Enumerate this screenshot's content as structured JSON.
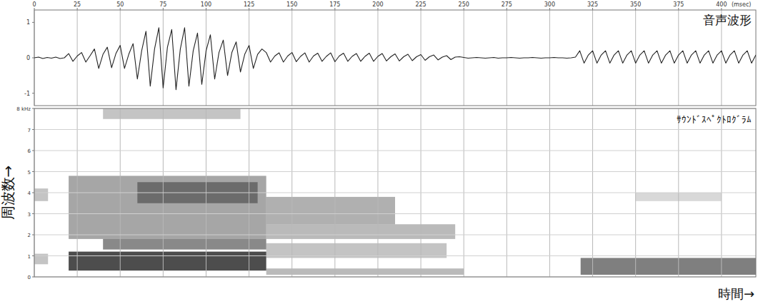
{
  "chart_data": [
    {
      "type": "line",
      "title": "音声波形",
      "xlabel": "(msec)",
      "color": "#222222",
      "grid": true,
      "xlim": [
        0,
        420
      ],
      "xticks": [
        0,
        25,
        50,
        75,
        100,
        125,
        150,
        175,
        200,
        225,
        250,
        275,
        300,
        325,
        350,
        375,
        400
      ],
      "ylim": [
        -1.35,
        1.35
      ],
      "yticks": [
        -1,
        0,
        1
      ],
      "x": [
        0,
        2.5,
        5,
        7.5,
        10,
        12.5,
        15,
        17.5,
        20,
        22.5,
        25,
        27.5,
        30,
        32.5,
        35,
        37.5,
        40,
        42.5,
        45,
        47.5,
        50,
        52.5,
        55,
        57.5,
        60,
        62.5,
        65,
        67.5,
        70,
        72.5,
        75,
        77.5,
        80,
        82.5,
        85,
        87.5,
        90,
        92.5,
        95,
        97.5,
        100,
        102.5,
        105,
        107.5,
        110,
        112.5,
        115,
        117.5,
        120,
        122.5,
        125,
        127.5,
        130,
        132.5,
        135,
        137.5,
        140,
        142.5,
        145,
        147.5,
        150,
        152.5,
        155,
        157.5,
        160,
        162.5,
        165,
        167.5,
        170,
        172.5,
        175,
        177.5,
        180,
        182.5,
        185,
        187.5,
        190,
        192.5,
        195,
        197.5,
        200,
        202.5,
        205,
        207.5,
        210,
        212.5,
        215,
        217.5,
        220,
        222.5,
        225,
        227.5,
        230,
        232.5,
        235,
        237.5,
        240,
        242.5,
        245,
        247.5,
        250,
        252.5,
        255,
        257.5,
        260,
        262.5,
        265,
        267.5,
        270,
        272.5,
        275,
        277.5,
        280,
        282.5,
        285,
        287.5,
        290,
        292.5,
        295,
        297.5,
        300,
        302.5,
        305,
        307.5,
        310,
        312.5,
        315,
        317.5,
        320,
        322.5,
        325,
        327.5,
        330,
        332.5,
        335,
        337.5,
        340,
        342.5,
        345,
        347.5,
        350,
        352.5,
        355,
        357.5,
        360,
        362.5,
        365,
        367.5,
        370,
        372.5,
        375,
        377.5,
        380,
        382.5,
        385,
        387.5,
        390,
        392.5,
        395,
        397.5,
        400,
        402.5,
        405,
        407.5,
        410,
        412.5,
        415,
        417.5,
        420
      ],
      "values": [
        0,
        0.02,
        -0.02,
        0.01,
        -0.01,
        0.02,
        -0.02,
        0,
        0.12,
        -0.1,
        0.05,
        0.15,
        -0.12,
        0.06,
        0.25,
        -0.3,
        0.1,
        0.3,
        -0.28,
        0.12,
        0.35,
        -0.3,
        0.1,
        0.4,
        -0.6,
        0.2,
        0.75,
        -0.8,
        0.25,
        0.85,
        -0.85,
        0.3,
        0.8,
        -0.9,
        0.25,
        0.85,
        -0.8,
        0.2,
        0.7,
        -0.75,
        0.2,
        0.65,
        -0.6,
        0.15,
        0.5,
        -0.5,
        0.15,
        0.45,
        -0.4,
        0.1,
        0.35,
        -0.3,
        0.1,
        0.25,
        0.15,
        -0.12,
        0.05,
        0.14,
        -0.12,
        0.05,
        0.15,
        -0.11,
        0.04,
        0.14,
        -0.12,
        0.05,
        0.13,
        -0.1,
        0.04,
        0.14,
        -0.11,
        0.05,
        0.13,
        -0.1,
        0.04,
        0.12,
        -0.1,
        0.04,
        0.13,
        -0.1,
        0.04,
        0.12,
        -0.09,
        0.03,
        0.11,
        -0.09,
        0.03,
        0.1,
        -0.08,
        0.03,
        0.09,
        -0.07,
        0.03,
        0.08,
        -0.06,
        0.02,
        0.06,
        -0.05,
        0.02,
        0.03,
        0.01,
        -0.01,
        0,
        0.01,
        0,
        -0.01,
        0,
        0.01,
        -0.01,
        0,
        0,
        0.01,
        0,
        -0.01,
        0,
        0,
        0.01,
        0,
        -0.01,
        0,
        0,
        0.01,
        0,
        0,
        -0.01,
        0,
        0.02,
        0.2,
        -0.15,
        0.08,
        0.2,
        -0.15,
        0.08,
        0.2,
        -0.15,
        0.08,
        0.2,
        -0.15,
        0.08,
        0.2,
        -0.15,
        0.08,
        0.2,
        -0.15,
        0.08,
        0.2,
        -0.15,
        0.08,
        0.2,
        -0.15,
        0.08,
        0.2,
        -0.15,
        0.08,
        0.2,
        -0.15,
        0.08,
        0.2,
        -0.15,
        0.08,
        0.2,
        -0.15,
        0.08,
        0.2,
        -0.15,
        0.08,
        0.2,
        -0.15,
        0.08
      ]
    },
    {
      "type": "heatmap",
      "title": "ｻｳﾝﾄﾞｽﾍﾟｸﾄﾛｸﾞﾗﾑ",
      "ylabel": "周波数→",
      "xlabel": "時間→",
      "color": "#3a3a3a",
      "grid": true,
      "tick_labels": "y",
      "xlim": [
        0,
        420
      ],
      "xticks": [
        0,
        25,
        50,
        75,
        100,
        125,
        150,
        175,
        200,
        225,
        250,
        275,
        300,
        325,
        350,
        375,
        400
      ],
      "ylim": [
        0,
        8
      ],
      "yticks": [
        0,
        1,
        2,
        3,
        4,
        5,
        6,
        7,
        {
          "value": 8,
          "label": "8 kHz"
        }
      ],
      "cells": [
        [
          0,
          8,
          3.6,
          4.2,
          0.3
        ],
        [
          0,
          8,
          0.6,
          1.1,
          0.3
        ],
        [
          20,
          135,
          0.3,
          1.2,
          0.9
        ],
        [
          40,
          135,
          1.3,
          1.8,
          0.6
        ],
        [
          20,
          135,
          1.8,
          4.8,
          0.45
        ],
        [
          60,
          130,
          3.5,
          4.5,
          0.55
        ],
        [
          40,
          120,
          7.5,
          8.0,
          0.3
        ],
        [
          135,
          210,
          2.5,
          3.8,
          0.4
        ],
        [
          135,
          245,
          1.8,
          2.5,
          0.35
        ],
        [
          135,
          240,
          0.9,
          1.6,
          0.3
        ],
        [
          135,
          250,
          0.1,
          0.4,
          0.35
        ],
        [
          318,
          420,
          0.1,
          0.9,
          0.65
        ],
        [
          350,
          400,
          3.6,
          4.0,
          0.2
        ]
      ]
    }
  ]
}
